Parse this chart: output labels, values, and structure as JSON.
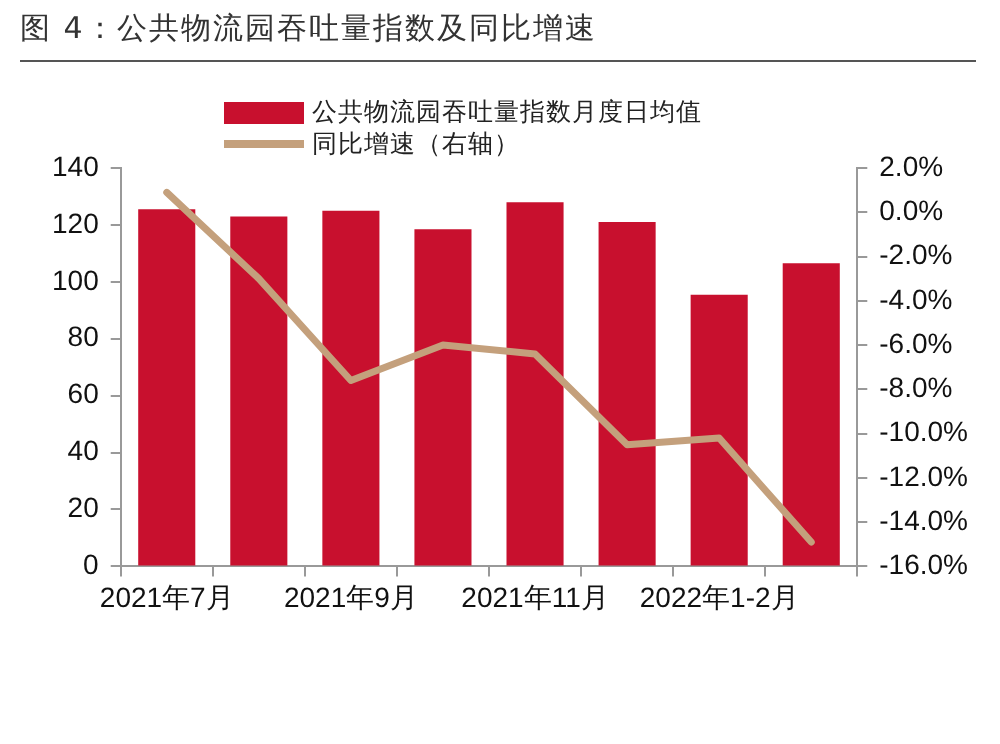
{
  "chart_data": {
    "type": "bar",
    "title": "图 4：公共物流园吞吐量指数及同比增速",
    "categories": [
      "2021年7月",
      null,
      "2021年9月",
      null,
      "2021年11月",
      null,
      "2022年1-2月",
      null
    ],
    "series": [
      {
        "name": "公共物流园吞吐量指数月度日均值",
        "color": "#c8102e",
        "values": [
          125.5,
          123,
          125,
          118.5,
          128,
          121,
          95.5,
          106.5
        ]
      },
      {
        "name": "同比增速（右轴）",
        "type": "line",
        "axis": "y2",
        "color": "#c4a07c",
        "values": [
          0.9,
          -3.0,
          -7.6,
          -6.0,
          -6.4,
          -10.5,
          -10.2,
          -14.9
        ]
      }
    ],
    "ylim": [
      0,
      140
    ],
    "yticks": [
      0,
      20,
      40,
      60,
      80,
      100,
      120,
      140
    ],
    "y2lim": [
      -16,
      2
    ],
    "y2ticks": [
      {
        "value": 2,
        "label": "2.0%"
      },
      {
        "value": 0,
        "label": "0.0%"
      },
      {
        "value": -2,
        "label": "-2.0%"
      },
      {
        "value": -4,
        "label": "-4.0%"
      },
      {
        "value": -6,
        "label": "-6.0%"
      },
      {
        "value": -8,
        "label": "-8.0%"
      },
      {
        "value": -10,
        "label": "-10.0%"
      },
      {
        "value": -12,
        "label": "-12.0%"
      },
      {
        "value": -14,
        "label": "-14.0%"
      },
      {
        "value": -16,
        "label": "-16.0%"
      }
    ],
    "grid": false,
    "legend": "top"
  }
}
